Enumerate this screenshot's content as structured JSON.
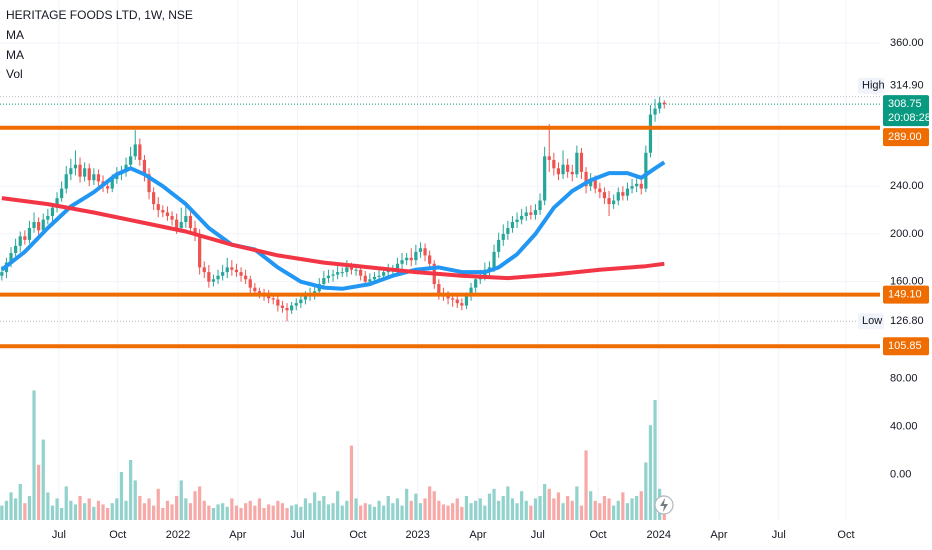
{
  "chart_data": {
    "type": "candlestick",
    "title": "HERITAGE FOODS LTD, 1W, NSE",
    "volume_label": "Vol",
    "up_color": "#26a69a",
    "down_color": "#ef5350",
    "open": [
      165,
      168,
      176,
      184,
      190,
      198,
      195,
      205,
      210,
      203,
      212,
      215,
      222,
      230,
      238,
      250,
      255,
      258,
      248,
      255,
      245,
      250,
      244,
      240,
      238,
      246,
      250,
      252,
      258,
      265,
      275,
      262,
      250,
      235,
      225,
      220,
      218,
      215,
      212,
      205,
      210,
      215,
      205,
      200,
      172,
      168,
      160,
      162,
      165,
      168,
      172,
      170,
      168,
      165,
      162,
      155,
      152,
      150,
      148,
      146,
      145,
      140,
      138,
      136,
      140,
      142,
      145,
      148,
      150,
      152,
      158,
      163,
      165,
      166,
      168,
      168,
      172,
      170,
      170,
      165,
      160,
      162,
      164,
      165,
      168,
      170,
      170,
      175,
      178,
      180,
      178,
      185,
      188,
      182,
      175,
      158,
      150,
      148,
      146,
      145,
      142,
      140,
      148,
      155,
      162,
      165,
      170,
      172,
      185,
      195,
      200,
      205,
      210,
      212,
      215,
      218,
      216,
      220,
      228,
      265,
      262,
      255,
      250,
      258,
      252,
      250,
      268,
      252,
      240,
      245,
      238,
      235,
      230,
      225,
      228,
      235,
      232,
      238,
      240,
      242,
      238,
      268,
      300,
      305,
      310
    ],
    "high": [
      173,
      180,
      189,
      196,
      202,
      203,
      211,
      218,
      214,
      217,
      221,
      226,
      235,
      244,
      257,
      263,
      270,
      264,
      260,
      259,
      255,
      254,
      249,
      246,
      250,
      256,
      257,
      264,
      273,
      287,
      280,
      266,
      255,
      239,
      231,
      224,
      223,
      219,
      217,
      222,
      225,
      219,
      211,
      204,
      177,
      174,
      166,
      170,
      174,
      180,
      178,
      175,
      172,
      170,
      165,
      159,
      155,
      154,
      153,
      150,
      149,
      144,
      142,
      143,
      146,
      150,
      152,
      155,
      157,
      163,
      169,
      170,
      170,
      173,
      172,
      178,
      176,
      175,
      174,
      169,
      167,
      168,
      170,
      172,
      175,
      174,
      180,
      184,
      184,
      188,
      191,
      193,
      192,
      186,
      178,
      162,
      155,
      152,
      150,
      150,
      146,
      151,
      159,
      166,
      170,
      176,
      177,
      191,
      201,
      208,
      211,
      215,
      218,
      221,
      223,
      224,
      225,
      234,
      273,
      292,
      268,
      260,
      270,
      263,
      258,
      274,
      272,
      256,
      251,
      249,
      243,
      239,
      236,
      233,
      239,
      240,
      243,
      246,
      247,
      246,
      274,
      308,
      313,
      314.9,
      312
    ],
    "low": [
      161,
      163,
      172,
      181,
      185,
      191,
      192,
      201,
      198,
      199,
      208,
      210,
      218,
      227,
      234,
      245,
      249,
      243,
      244,
      240,
      241,
      240,
      235,
      234,
      235,
      242,
      245,
      248,
      254,
      262,
      257,
      244,
      229,
      220,
      214,
      214,
      211,
      207,
      200,
      201,
      205,
      200,
      194,
      166,
      163,
      155,
      156,
      158,
      161,
      163,
      165,
      164,
      160,
      158,
      149,
      148,
      146,
      144,
      142,
      141,
      135,
      134,
      126.8,
      133,
      136,
      138,
      141,
      144,
      145,
      148,
      154,
      159,
      160,
      162,
      164,
      164,
      166,
      165,
      161,
      156,
      157,
      158,
      160,
      161,
      164,
      165,
      166,
      171,
      174,
      173,
      174,
      180,
      177,
      170,
      154,
      145,
      144,
      141,
      139,
      138,
      136,
      137,
      144,
      151,
      158,
      161,
      165,
      168,
      180,
      190,
      195,
      201,
      205,
      208,
      211,
      212,
      212,
      216,
      224,
      252,
      249,
      245,
      246,
      247,
      244,
      247,
      246,
      234,
      236,
      234,
      230,
      225,
      215,
      221,
      224,
      228,
      228,
      234,
      235,
      233,
      235,
      264,
      294,
      301,
      305
    ],
    "close": [
      168,
      176,
      184,
      190,
      198,
      195,
      205,
      210,
      203,
      212,
      215,
      222,
      230,
      238,
      250,
      255,
      258,
      248,
      255,
      245,
      250,
      244,
      240,
      238,
      246,
      250,
      252,
      258,
      265,
      275,
      262,
      250,
      235,
      225,
      220,
      218,
      215,
      212,
      205,
      210,
      215,
      205,
      200,
      172,
      168,
      160,
      162,
      165,
      168,
      172,
      170,
      168,
      165,
      162,
      155,
      152,
      150,
      148,
      146,
      145,
      140,
      138,
      136,
      140,
      142,
      145,
      148,
      150,
      152,
      158,
      163,
      165,
      166,
      168,
      168,
      172,
      170,
      170,
      165,
      160,
      162,
      164,
      165,
      168,
      170,
      170,
      175,
      178,
      180,
      178,
      185,
      188,
      182,
      175,
      158,
      150,
      148,
      146,
      145,
      142,
      140,
      148,
      155,
      162,
      165,
      170,
      172,
      185,
      195,
      200,
      205,
      210,
      212,
      215,
      218,
      216,
      220,
      228,
      265,
      262,
      255,
      250,
      258,
      252,
      250,
      268,
      252,
      240,
      245,
      238,
      235,
      230,
      225,
      228,
      235,
      232,
      238,
      240,
      242,
      238,
      268,
      300,
      305,
      310,
      308.75
    ],
    "volume": [
      -26,
      -22,
      -15,
      -20,
      -8,
      -24,
      -18,
      70,
      8,
      29,
      -15,
      -26,
      -20,
      -28,
      -10,
      -22,
      -25,
      -18,
      -24,
      -20,
      -27,
      -22,
      -25,
      -28,
      -24,
      -20,
      2,
      -22,
      12,
      -5,
      -18,
      -24,
      -20,
      -26,
      -12,
      -28,
      -22,
      -25,
      -18,
      -5,
      -20,
      -24,
      -14,
      -10,
      -22,
      -26,
      -28,
      -25,
      -24,
      -27,
      -20,
      -26,
      -28,
      -24,
      -22,
      -26,
      -20,
      -28,
      -25,
      -26,
      -22,
      -24,
      -28,
      -26,
      -25,
      -27,
      -20,
      -24,
      -15,
      -22,
      -18,
      -25,
      -24,
      -14,
      -26,
      -22,
      24,
      -20,
      -26,
      -24,
      -25,
      -27,
      -22,
      -26,
      -18,
      -24,
      -20,
      -26,
      -12,
      -22,
      -16,
      -24,
      -20,
      -10,
      -14,
      -22,
      -25,
      -26,
      -24,
      -20,
      -27,
      -18,
      -24,
      -22,
      -20,
      -26,
      -16,
      -12,
      -22,
      -18,
      -10,
      -20,
      -24,
      -14,
      -22,
      -26,
      -20,
      -18,
      -8,
      -12,
      -20,
      -15,
      -24,
      -18,
      -22,
      -10,
      -26,
      20,
      -14,
      -22,
      -24,
      -18,
      -20,
      -26,
      -22,
      -15,
      -24,
      -20,
      -18,
      -14,
      10,
      41,
      62,
      -12,
      -26
    ],
    "xlim": [
      -0.4,
      190.9
    ],
    "xticks": [
      {
        "value": 12.4,
        "label": "Jul"
      },
      {
        "value": 25.2,
        "label": "Oct"
      },
      {
        "value": 38.3,
        "label": "2022"
      },
      {
        "value": 51.3,
        "label": "Apr"
      },
      {
        "value": 64.3,
        "label": "Jul"
      },
      {
        "value": 77.4,
        "label": "Oct"
      },
      {
        "value": 90.4,
        "label": "2023"
      },
      {
        "value": 103.5,
        "label": "Apr"
      },
      {
        "value": 116.5,
        "label": "Jul"
      },
      {
        "value": 129.6,
        "label": "Oct"
      },
      {
        "value": 142.8,
        "label": "2024"
      },
      {
        "value": 155.9,
        "label": "Apr"
      },
      {
        "value": 168.9,
        "label": "Jul"
      },
      {
        "value": 183.5,
        "label": "Oct"
      }
    ],
    "ylim": [
      86,
      396
    ],
    "yticks": [
      {
        "value": 160,
        "label": "160.00"
      },
      {
        "value": 200,
        "label": "200.00"
      },
      {
        "value": 240,
        "label": "240.00"
      },
      {
        "value": 360,
        "label": "360.00"
      }
    ],
    "vol_ylim": [
      -38,
      87
    ],
    "vol_yticks": [
      {
        "value": 0,
        "label": "0.00"
      },
      {
        "value": 40,
        "label": "40.00"
      },
      {
        "value": 80,
        "label": "80.00"
      }
    ],
    "moving_averages": [
      {
        "name": "MA",
        "color": "#2196f3",
        "x": [
          0,
          5,
          10,
          15,
          20,
          25,
          28,
          31,
          35,
          40,
          45,
          50,
          55,
          60,
          65,
          70,
          74,
          80,
          85,
          90,
          95,
          100,
          105,
          108,
          112,
          116,
          120,
          124,
          128,
          132,
          136,
          139,
          142,
          144
        ],
        "values": [
          170,
          185,
          205,
          223,
          235,
          250,
          255,
          250,
          240,
          225,
          205,
          191,
          187,
          172,
          160,
          155,
          154,
          158,
          165,
          170,
          172,
          168,
          168,
          172,
          183,
          200,
          222,
          236,
          245,
          251,
          251,
          247,
          255,
          260
        ]
      },
      {
        "name": "MA",
        "color": "#f23645",
        "x": [
          0,
          10,
          20,
          30,
          40,
          50,
          60,
          70,
          80,
          90,
          100,
          110,
          120,
          130,
          140,
          144
        ],
        "values": [
          230,
          225,
          218,
          210,
          202,
          191,
          182,
          176,
          172,
          168,
          165,
          163,
          166,
          170,
          173,
          175
        ]
      }
    ],
    "levels": [
      {
        "value": 289,
        "label": "289.00"
      },
      {
        "value": 149.1,
        "label": "149.10"
      },
      {
        "value": 105.85,
        "label": "105.85"
      }
    ],
    "level_color": "#ef6c00",
    "session_high": {
      "label": "High",
      "value": 314.9,
      "value_label": "314.90"
    },
    "session_low": {
      "label": "Low",
      "value": 126.8,
      "value_label": "126.80"
    },
    "last": {
      "value": 308.75,
      "value_label": "308.75",
      "countdown": "20:08:28",
      "color": "#089981"
    }
  }
}
